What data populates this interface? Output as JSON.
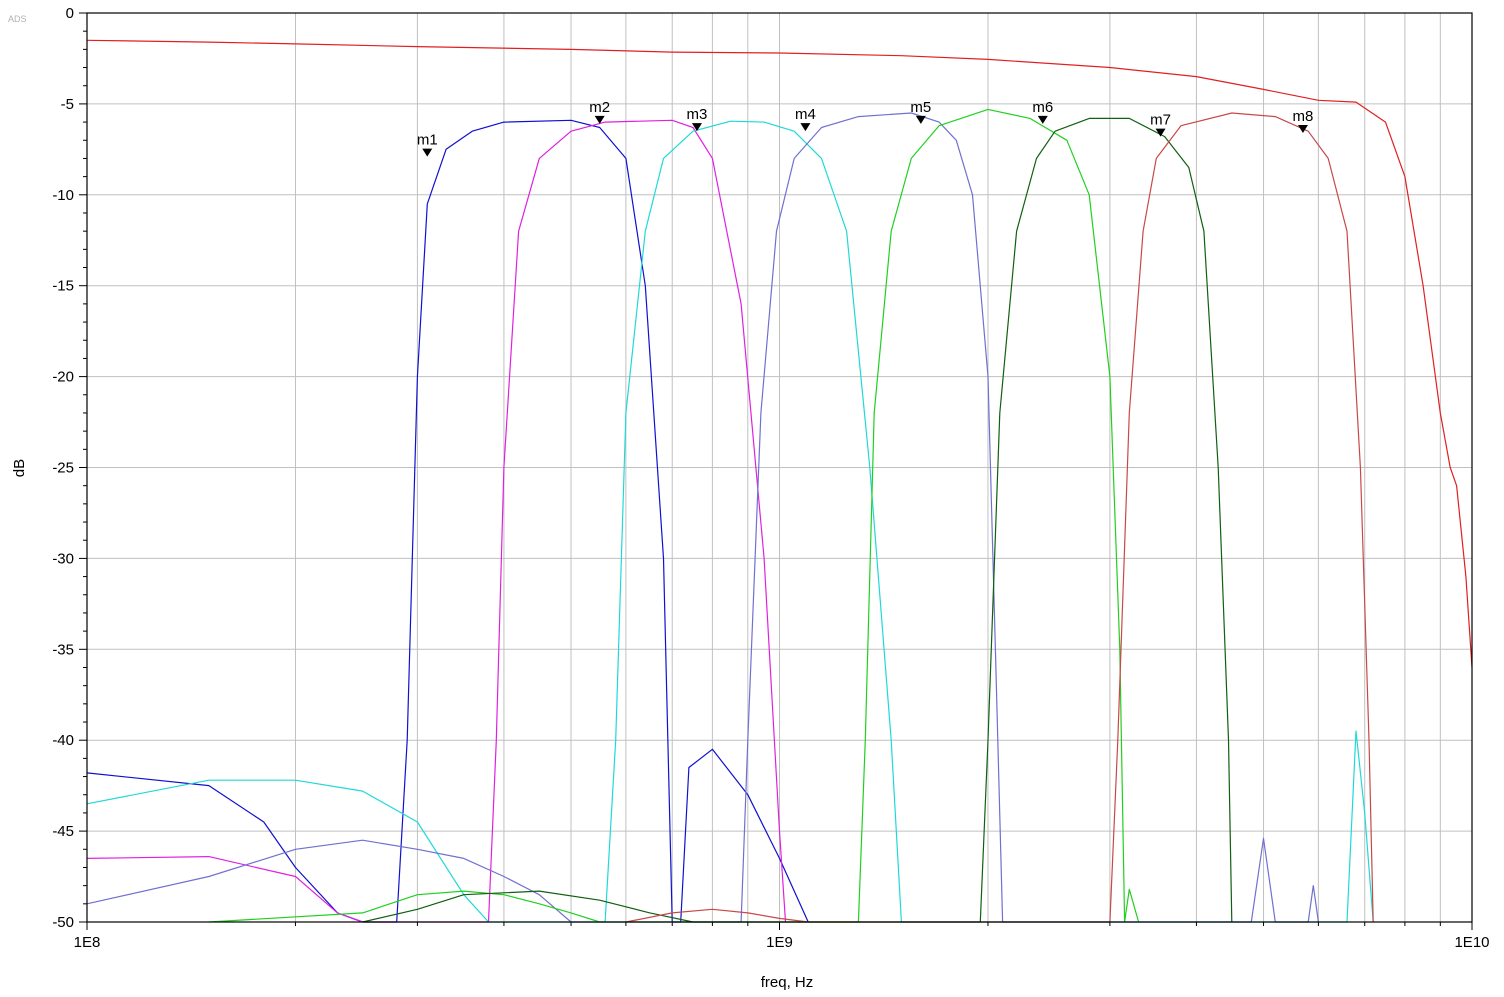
{
  "app": {
    "logo": "ADS"
  },
  "chart_data": {
    "type": "line",
    "xlabel": "freq, Hz",
    "ylabel": "dB",
    "xscale": "log",
    "xlim": [
      100000000,
      10000000000
    ],
    "ylim": [
      -50,
      0
    ],
    "grid": true,
    "xticks": [
      {
        "value": 100000000,
        "label": "1E8"
      },
      {
        "value": 1000000000,
        "label": "1E9"
      },
      {
        "value": 10000000000,
        "label": "1E10"
      }
    ],
    "yticks": [
      {
        "value": 0,
        "label": "0"
      },
      {
        "value": -5,
        "label": "-5"
      },
      {
        "value": -10,
        "label": "-10"
      },
      {
        "value": -15,
        "label": "-15"
      },
      {
        "value": -20,
        "label": "-20"
      },
      {
        "value": -25,
        "label": "-25"
      },
      {
        "value": -30,
        "label": "-30"
      },
      {
        "value": -35,
        "label": "-35"
      },
      {
        "value": -40,
        "label": "-40"
      },
      {
        "value": -45,
        "label": "-45"
      },
      {
        "value": -50,
        "label": "-50"
      }
    ],
    "series": [
      {
        "color": "#e02020",
        "points": [
          [
            100000000,
            -1.5
          ],
          [
            150000000,
            -1.6
          ],
          [
            200000000,
            -1.7
          ],
          [
            300000000,
            -1.85
          ],
          [
            500000000,
            -2.0
          ],
          [
            700000000,
            -2.15
          ],
          [
            1000000000,
            -2.2
          ],
          [
            1500000000,
            -2.35
          ],
          [
            2000000000,
            -2.55
          ],
          [
            3000000000,
            -3.0
          ],
          [
            4000000000,
            -3.5
          ],
          [
            5000000000,
            -4.2
          ],
          [
            6000000000,
            -4.8
          ],
          [
            6800000000,
            -4.9
          ],
          [
            7500000000,
            -6.0
          ],
          [
            8000000000,
            -9.0
          ],
          [
            8500000000,
            -15.0
          ],
          [
            9000000000,
            -22.0
          ],
          [
            9300000000,
            -25.0
          ],
          [
            9500000000,
            -26.0
          ],
          [
            9800000000,
            -31.0
          ],
          [
            10000000000,
            -36.0
          ]
        ]
      },
      {
        "color": "#1010d0",
        "points": [
          [
            100000000,
            -41.8
          ],
          [
            150000000,
            -42.5
          ],
          [
            180000000,
            -44.5
          ],
          [
            200000000,
            -47.0
          ],
          [
            230000000,
            -49.5
          ],
          [
            250000000,
            -50.0
          ],
          [
            280000000,
            -50.0
          ],
          [
            290000000,
            -40.0
          ],
          [
            300000000,
            -20.0
          ],
          [
            310000000,
            -10.5
          ],
          [
            330000000,
            -7.5
          ],
          [
            360000000,
            -6.5
          ],
          [
            400000000,
            -6.0
          ],
          [
            500000000,
            -5.9
          ],
          [
            550000000,
            -6.3
          ],
          [
            600000000,
            -8.0
          ],
          [
            640000000,
            -15.0
          ],
          [
            680000000,
            -30.0
          ],
          [
            700000000,
            -50.0
          ],
          [
            720000000,
            -50.0
          ],
          [
            740000000,
            -41.5
          ],
          [
            800000000,
            -40.5
          ],
          [
            900000000,
            -43.0
          ],
          [
            1000000000,
            -46.5
          ],
          [
            1100000000,
            -50.0
          ]
        ]
      },
      {
        "color": "#e020e0",
        "points": [
          [
            100000000,
            -46.5
          ],
          [
            150000000,
            -46.4
          ],
          [
            200000000,
            -47.5
          ],
          [
            230000000,
            -49.5
          ],
          [
            250000000,
            -50.0
          ],
          [
            380000000,
            -50.0
          ],
          [
            390000000,
            -40.0
          ],
          [
            400000000,
            -25.0
          ],
          [
            420000000,
            -12.0
          ],
          [
            450000000,
            -8.0
          ],
          [
            500000000,
            -6.5
          ],
          [
            560000000,
            -6.0
          ],
          [
            700000000,
            -5.9
          ],
          [
            750000000,
            -6.3
          ],
          [
            800000000,
            -8.0
          ],
          [
            880000000,
            -16.0
          ],
          [
            950000000,
            -30.0
          ],
          [
            1000000000,
            -45.0
          ],
          [
            1020000000,
            -50.0
          ]
        ]
      },
      {
        "color": "#20d8d8",
        "points": [
          [
            100000000,
            -43.5
          ],
          [
            150000000,
            -42.2
          ],
          [
            200000000,
            -42.2
          ],
          [
            250000000,
            -42.8
          ],
          [
            300000000,
            -44.5
          ],
          [
            350000000,
            -48.5
          ],
          [
            380000000,
            -50.0
          ],
          [
            560000000,
            -50.0
          ],
          [
            580000000,
            -40.0
          ],
          [
            600000000,
            -22.0
          ],
          [
            640000000,
            -12.0
          ],
          [
            680000000,
            -8.0
          ],
          [
            750000000,
            -6.5
          ],
          [
            850000000,
            -5.95
          ],
          [
            950000000,
            -6.0
          ],
          [
            1050000000,
            -6.5
          ],
          [
            1150000000,
            -8.0
          ],
          [
            1250000000,
            -12.0
          ],
          [
            1350000000,
            -25.0
          ],
          [
            1450000000,
            -40.0
          ],
          [
            1500000000,
            -50.0
          ],
          [
            6600000000,
            -50.0
          ],
          [
            6800000000,
            -39.5
          ],
          [
            7000000000,
            -44.0
          ],
          [
            7200000000,
            -50.0
          ]
        ]
      },
      {
        "color": "#7070d0",
        "points": [
          [
            100000000,
            -49.0
          ],
          [
            150000000,
            -47.5
          ],
          [
            200000000,
            -46.0
          ],
          [
            250000000,
            -45.5
          ],
          [
            300000000,
            -46.0
          ],
          [
            350000000,
            -46.5
          ],
          [
            400000000,
            -47.5
          ],
          [
            450000000,
            -48.5
          ],
          [
            500000000,
            -50.0
          ],
          [
            880000000,
            -50.0
          ],
          [
            900000000,
            -40.0
          ],
          [
            940000000,
            -22.0
          ],
          [
            990000000,
            -12.0
          ],
          [
            1050000000,
            -8.0
          ],
          [
            1150000000,
            -6.3
          ],
          [
            1300000000,
            -5.7
          ],
          [
            1550000000,
            -5.5
          ],
          [
            1700000000,
            -6.0
          ],
          [
            1800000000,
            -7.0
          ],
          [
            1900000000,
            -10.0
          ],
          [
            2000000000,
            -20.0
          ],
          [
            2050000000,
            -35.0
          ],
          [
            2100000000,
            -50.0
          ],
          [
            4800000000,
            -50.0
          ],
          [
            5000000000,
            -45.4
          ],
          [
            5200000000,
            -50.0
          ],
          [
            5800000000,
            -50.0
          ],
          [
            5900000000,
            -48.0
          ],
          [
            6000000000,
            -50.0
          ]
        ]
      },
      {
        "color": "#20d020",
        "points": [
          [
            150000000,
            -50.0
          ],
          [
            250000000,
            -49.5
          ],
          [
            300000000,
            -48.5
          ],
          [
            350000000,
            -48.3
          ],
          [
            400000000,
            -48.5
          ],
          [
            450000000,
            -49.0
          ],
          [
            500000000,
            -49.5
          ],
          [
            550000000,
            -50.0
          ],
          [
            1300000000,
            -50.0
          ],
          [
            1330000000,
            -40.0
          ],
          [
            1370000000,
            -22.0
          ],
          [
            1450000000,
            -12.0
          ],
          [
            1550000000,
            -8.0
          ],
          [
            1700000000,
            -6.2
          ],
          [
            2000000000,
            -5.3
          ],
          [
            2300000000,
            -5.8
          ],
          [
            2600000000,
            -7.0
          ],
          [
            2800000000,
            -10.0
          ],
          [
            3000000000,
            -20.0
          ],
          [
            3100000000,
            -35.0
          ],
          [
            3150000000,
            -50.0
          ],
          [
            3200000000,
            -48.2
          ],
          [
            3300000000,
            -50.0
          ]
        ]
      },
      {
        "color": "#106010",
        "points": [
          [
            250000000,
            -50.0
          ],
          [
            300000000,
            -49.3
          ],
          [
            350000000,
            -48.5
          ],
          [
            450000000,
            -48.3
          ],
          [
            550000000,
            -48.8
          ],
          [
            650000000,
            -49.5
          ],
          [
            750000000,
            -50.0
          ],
          [
            1950000000,
            -50.0
          ],
          [
            2000000000,
            -40.0
          ],
          [
            2080000000,
            -22.0
          ],
          [
            2200000000,
            -12.0
          ],
          [
            2350000000,
            -8.0
          ],
          [
            2500000000,
            -6.5
          ],
          [
            2800000000,
            -5.8
          ],
          [
            3200000000,
            -5.8
          ],
          [
            3600000000,
            -6.8
          ],
          [
            3900000000,
            -8.5
          ],
          [
            4100000000,
            -12.0
          ],
          [
            4300000000,
            -25.0
          ],
          [
            4450000000,
            -40.0
          ],
          [
            4500000000,
            -50.0
          ]
        ]
      },
      {
        "color": "#c84848",
        "points": [
          [
            600000000,
            -50.0
          ],
          [
            700000000,
            -49.5
          ],
          [
            800000000,
            -49.3
          ],
          [
            900000000,
            -49.5
          ],
          [
            1000000000,
            -49.8
          ],
          [
            1100000000,
            -50.0
          ],
          [
            3000000000,
            -50.0
          ],
          [
            3080000000,
            -40.0
          ],
          [
            3200000000,
            -22.0
          ],
          [
            3350000000,
            -12.0
          ],
          [
            3500000000,
            -8.0
          ],
          [
            3800000000,
            -6.2
          ],
          [
            4500000000,
            -5.5
          ],
          [
            5200000000,
            -5.7
          ],
          [
            5800000000,
            -6.5
          ],
          [
            6200000000,
            -8.0
          ],
          [
            6600000000,
            -12.0
          ],
          [
            6900000000,
            -25.0
          ],
          [
            7100000000,
            -40.0
          ],
          [
            7200000000,
            -50.0
          ]
        ]
      }
    ],
    "markers": [
      {
        "name": "m1",
        "x": 310000000,
        "y": -7.9
      },
      {
        "name": "m2",
        "x": 550000000,
        "y": -6.1
      },
      {
        "name": "m3",
        "x": 760000000,
        "y": -6.5
      },
      {
        "name": "m4",
        "x": 1090000000,
        "y": -6.5
      },
      {
        "name": "m5",
        "x": 1600000000,
        "y": -6.1
      },
      {
        "name": "m6",
        "x": 2400000000,
        "y": -6.1
      },
      {
        "name": "m7",
        "x": 3550000000,
        "y": -6.8
      },
      {
        "name": "m8",
        "x": 5700000000,
        "y": -6.6
      }
    ]
  }
}
